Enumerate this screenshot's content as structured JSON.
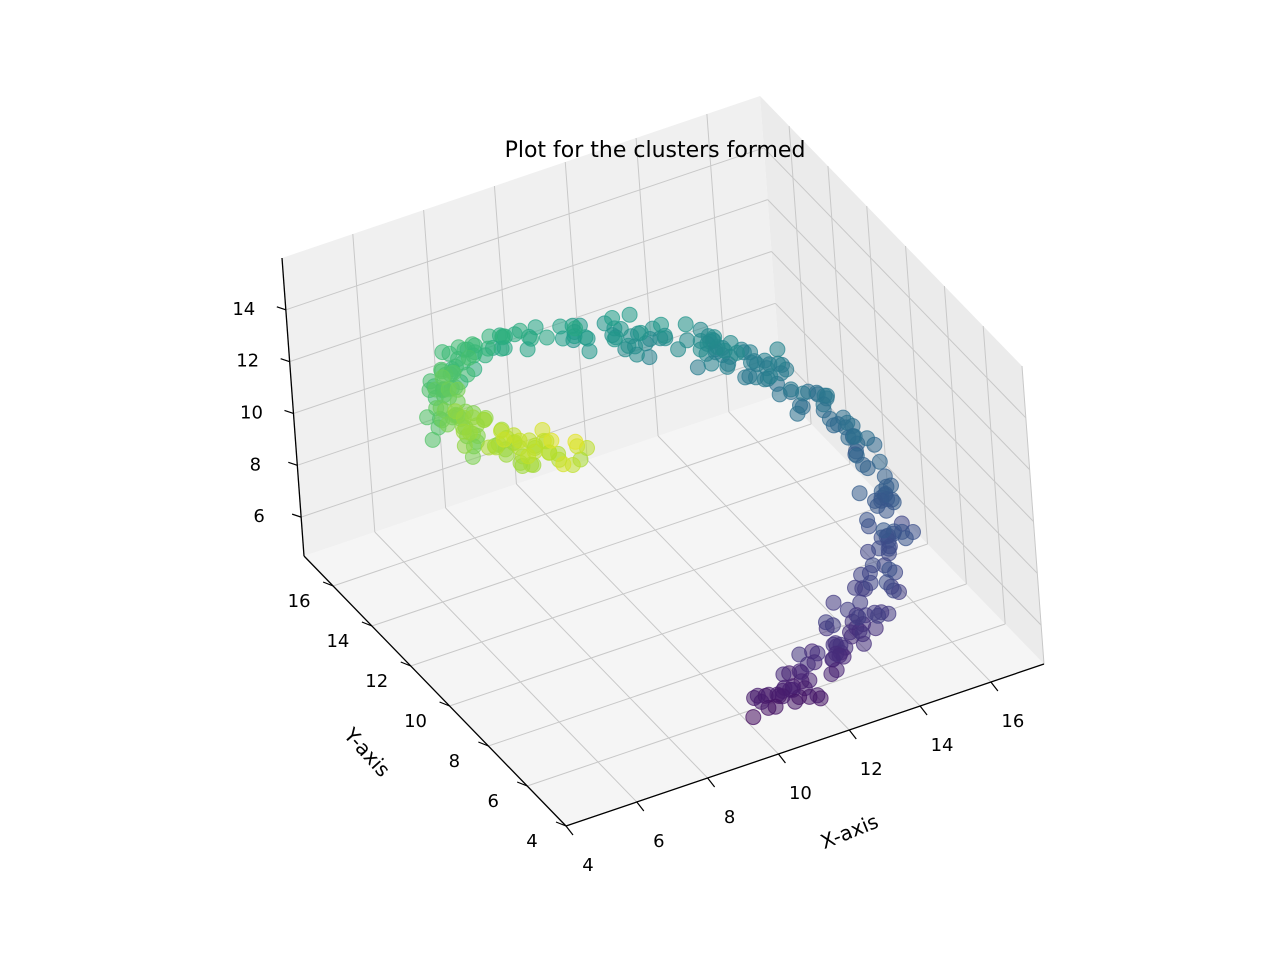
{
  "chart_data": {
    "type": "scatter",
    "projection": "3d",
    "title": "Plot for the clusters formed",
    "xlabel": "X-axis",
    "ylabel": "Y-axis",
    "zlabel": "",
    "xlim": [
      4,
      17.5
    ],
    "ylim": [
      4,
      17.5
    ],
    "zlim": [
      4.5,
      16
    ],
    "xticks": [
      "4",
      "6",
      "8",
      "10",
      "12",
      "14",
      "16"
    ],
    "yticks": [
      "4",
      "6",
      "8",
      "10",
      "12",
      "14",
      "16"
    ],
    "zticks": [
      "6",
      "8",
      "10",
      "12",
      "14"
    ],
    "grid": true,
    "colormap": "viridis",
    "color_by": "z",
    "marker_alpha": 0.55,
    "description_of_shape": "points form a helical / spiral band rising with z"
  },
  "colors": {
    "pane_left": "#f0f0f0",
    "pane_right": "#ebebeb",
    "pane_floor": "#f5f5f5",
    "grid": "#c8c8c8",
    "axis": "#000000"
  }
}
